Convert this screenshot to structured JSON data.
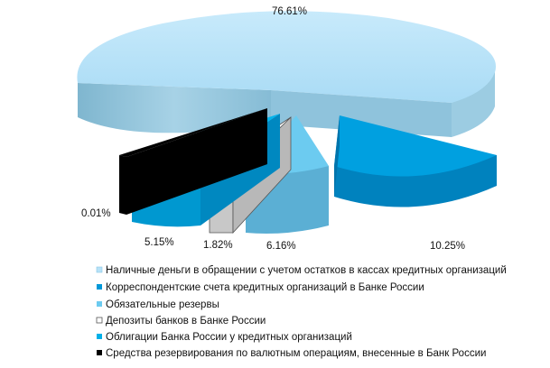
{
  "chart_data": {
    "type": "pie",
    "title": "",
    "legend_position": "bottom",
    "slices": [
      {
        "name": "Наличные деньги в обращении с учетом остатков в кассах кредитных организаций",
        "value": 76.61,
        "label": "76.61%",
        "color": "#B7E2F8"
      },
      {
        "name": "Корреспондентские счета кредитных организаций в Банке России",
        "value": 10.25,
        "label": "10.25%",
        "color": "#0098D8"
      },
      {
        "name": "Обязательные резервы",
        "value": 6.16,
        "label": "6.16%",
        "color": "#6CCBF0"
      },
      {
        "name": "Депозиты банков в Банке России",
        "value": 1.82,
        "label": "1.82%",
        "color": "#FFFFFF"
      },
      {
        "name": "Облигации Банка России у кредитных  организаций",
        "value": 5.15,
        "label": "5.15%",
        "color": "#00B0E8"
      },
      {
        "name": "Средства резервирования по валютным операциям, внесенные в Банк России",
        "value": 0.01,
        "label": "0.01%",
        "color": "#000000"
      }
    ]
  }
}
